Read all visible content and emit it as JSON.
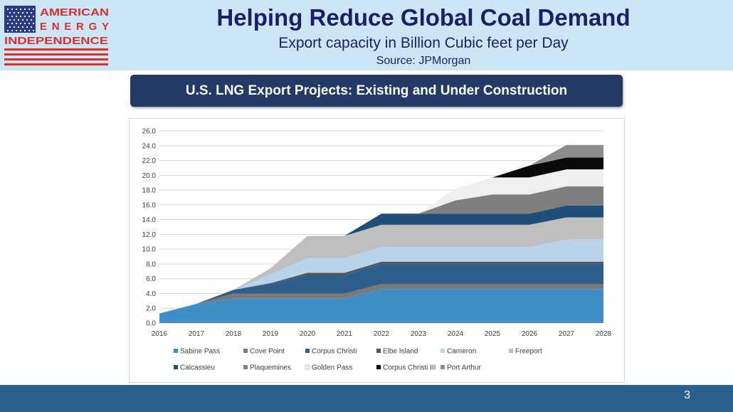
{
  "header": {
    "logo_lines": [
      "AMERICAN",
      "ENERGY",
      "INDEPENDENCE"
    ],
    "title": "Helping Reduce Global Coal Demand",
    "subtitle": "Export capacity in Billion Cubic feet per Day",
    "source": "Source: JPMorgan"
  },
  "banner": {
    "text": "U.S. LNG Export Projects: Existing and Under Construction"
  },
  "footer": {
    "page_number": "3"
  },
  "colors": {
    "brand_navy": "#1b1f6b",
    "brand_red": "#d8302f",
    "header_bg": "#cde6f6",
    "banner_bg": "#233a66",
    "footer_bg": "#2c5f8e"
  },
  "chart_data": {
    "type": "area",
    "stacked": true,
    "title": "U.S. LNG Export Projects: Existing and Under Construction",
    "xlabel": "",
    "ylabel": "",
    "x": [
      2016,
      2017,
      2018,
      2019,
      2020,
      2021,
      2022,
      2023,
      2024,
      2025,
      2026,
      2027,
      2028
    ],
    "ylim": [
      0,
      26
    ],
    "ytick_labels": [
      "0.0",
      "2.0",
      "4.0",
      "6.0",
      "8.0",
      "10.0",
      "12.0",
      "14.0",
      "16.0",
      "18.0",
      "20.0",
      "22.0",
      "24.0",
      "26.0"
    ],
    "grid": true,
    "legend_position": "bottom",
    "series": [
      {
        "name": "Sabine Pass",
        "color": "#3f8fc6",
        "values": [
          1.3,
          2.6,
          3.3,
          3.3,
          3.3,
          3.3,
          4.6,
          4.6,
          4.6,
          4.6,
          4.6,
          4.6,
          4.6
        ]
      },
      {
        "name": "Cove Point",
        "color": "#7a7a7a",
        "values": [
          0.0,
          0.0,
          0.7,
          0.7,
          0.7,
          0.7,
          0.7,
          0.7,
          0.7,
          0.7,
          0.7,
          0.7,
          0.7
        ]
      },
      {
        "name": "Corpus Christi",
        "color": "#2e5e8c",
        "values": [
          0.0,
          0.0,
          0.5,
          1.3,
          2.5,
          2.5,
          2.7,
          2.7,
          2.7,
          2.7,
          2.7,
          2.7,
          2.7
        ]
      },
      {
        "name": "Elbe Island",
        "color": "#555555",
        "values": [
          0.0,
          0.0,
          0.0,
          0.1,
          0.3,
          0.3,
          0.3,
          0.3,
          0.3,
          0.3,
          0.3,
          0.3,
          0.3
        ]
      },
      {
        "name": "Cameron",
        "color": "#b8d3ea",
        "values": [
          0.0,
          0.0,
          0.0,
          1.2,
          2.0,
          2.0,
          2.0,
          2.0,
          2.0,
          2.0,
          2.0,
          3.0,
          3.0
        ]
      },
      {
        "name": "Freeport",
        "color": "#bfbfbf",
        "values": [
          0.0,
          0.0,
          0.0,
          0.8,
          3.0,
          3.0,
          3.0,
          3.0,
          3.0,
          3.0,
          3.0,
          3.0,
          3.0
        ]
      },
      {
        "name": "Calcassieu",
        "color": "#1f4e79",
        "values": [
          0.0,
          0.0,
          0.0,
          0.0,
          0.0,
          0.0,
          1.5,
          1.5,
          1.5,
          1.5,
          1.5,
          1.6,
          1.6
        ]
      },
      {
        "name": "Plaquemines",
        "color": "#7f7f7f",
        "values": [
          0.0,
          0.0,
          0.0,
          0.0,
          0.0,
          0.0,
          0.0,
          0.0,
          1.8,
          2.6,
          2.6,
          2.6,
          2.6
        ]
      },
      {
        "name": "Golden Pass",
        "color": "#efefef",
        "values": [
          0.0,
          0.0,
          0.0,
          0.0,
          0.0,
          0.0,
          0.0,
          0.0,
          1.6,
          2.3,
          2.3,
          2.3,
          2.3
        ]
      },
      {
        "name": "Corpus Christi III",
        "color": "#0a0a0a",
        "values": [
          0.0,
          0.0,
          0.0,
          0.0,
          0.0,
          0.0,
          0.0,
          0.0,
          0.0,
          0.0,
          1.6,
          1.6,
          1.6
        ]
      },
      {
        "name": "Port Arthur",
        "color": "#8c8c8c",
        "values": [
          0.0,
          0.0,
          0.0,
          0.0,
          0.0,
          0.0,
          0.0,
          0.0,
          0.0,
          0.0,
          0.0,
          1.7,
          1.7
        ]
      }
    ]
  }
}
